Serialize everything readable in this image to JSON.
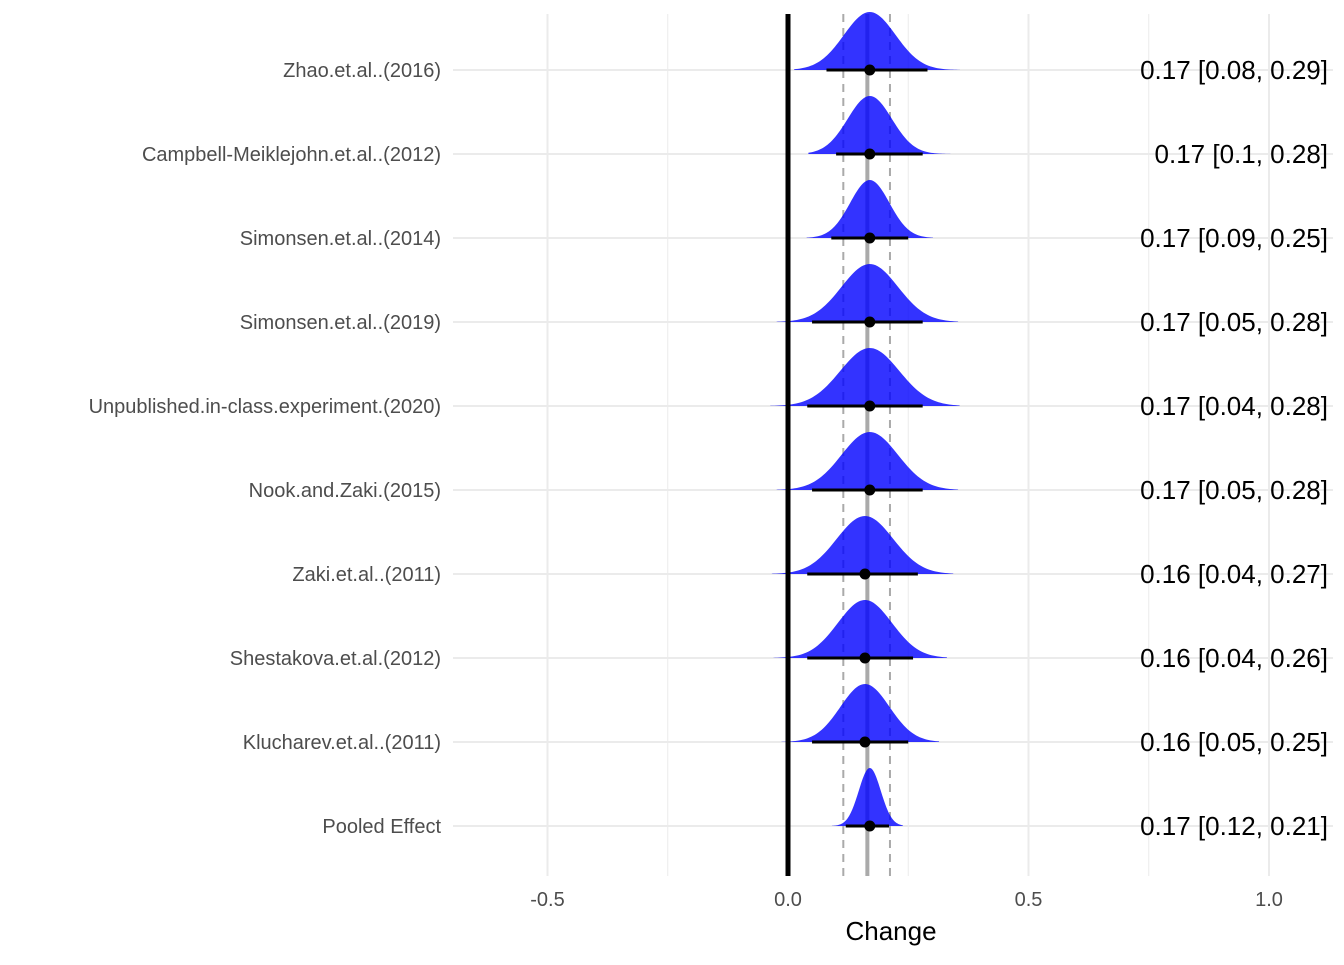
{
  "chart_data": {
    "type": "forest",
    "xlabel": "Change",
    "xlim": [
      -0.7,
      1.05
    ],
    "xticks": [
      -0.5,
      0.0,
      0.5,
      1.0
    ],
    "xtick_labels": [
      "-0.5",
      "0.0",
      "0.5",
      "1.0"
    ],
    "grid": true,
    "reference_line": 0.0,
    "pooled_mean": 0.165,
    "pooled_interval": [
      0.115,
      0.212
    ],
    "colors": {
      "density": "#0000ff",
      "point": "#000000",
      "grid": "#ebebeb",
      "reference": "#000000",
      "pooled_line": "#aaaaaa"
    },
    "studies": [
      {
        "label": "Zhao.et.al..(2016)",
        "estimate": 0.17,
        "lower": 0.08,
        "upper": 0.29,
        "text": "0.17 [0.08, 0.29]"
      },
      {
        "label": "Campbell-Meiklejohn.et.al..(2012)",
        "estimate": 0.17,
        "lower": 0.1,
        "upper": 0.28,
        "text": "0.17 [0.1, 0.28]"
      },
      {
        "label": "Simonsen.et.al..(2014)",
        "estimate": 0.17,
        "lower": 0.09,
        "upper": 0.25,
        "text": "0.17 [0.09, 0.25]"
      },
      {
        "label": "Simonsen.et.al..(2019)",
        "estimate": 0.17,
        "lower": 0.05,
        "upper": 0.28,
        "text": "0.17 [0.05, 0.28]"
      },
      {
        "label": "Unpublished.in-class.experiment.(2020)",
        "estimate": 0.17,
        "lower": 0.04,
        "upper": 0.28,
        "text": "0.17 [0.04, 0.28]"
      },
      {
        "label": "Nook.and.Zaki.(2015)",
        "estimate": 0.17,
        "lower": 0.05,
        "upper": 0.28,
        "text": "0.17 [0.05, 0.28]"
      },
      {
        "label": "Zaki.et.al..(2011)",
        "estimate": 0.16,
        "lower": 0.04,
        "upper": 0.27,
        "text": "0.16 [0.04, 0.27]"
      },
      {
        "label": "Shestakova.et.al.(2012)",
        "estimate": 0.16,
        "lower": 0.04,
        "upper": 0.26,
        "text": "0.16 [0.04, 0.26]"
      },
      {
        "label": "Klucharev.et.al..(2011)",
        "estimate": 0.16,
        "lower": 0.05,
        "upper": 0.25,
        "text": "0.16 [0.05, 0.25]"
      },
      {
        "label": "Pooled Effect",
        "estimate": 0.17,
        "lower": 0.12,
        "upper": 0.21,
        "text": "0.17 [0.12, 0.21]"
      }
    ]
  }
}
